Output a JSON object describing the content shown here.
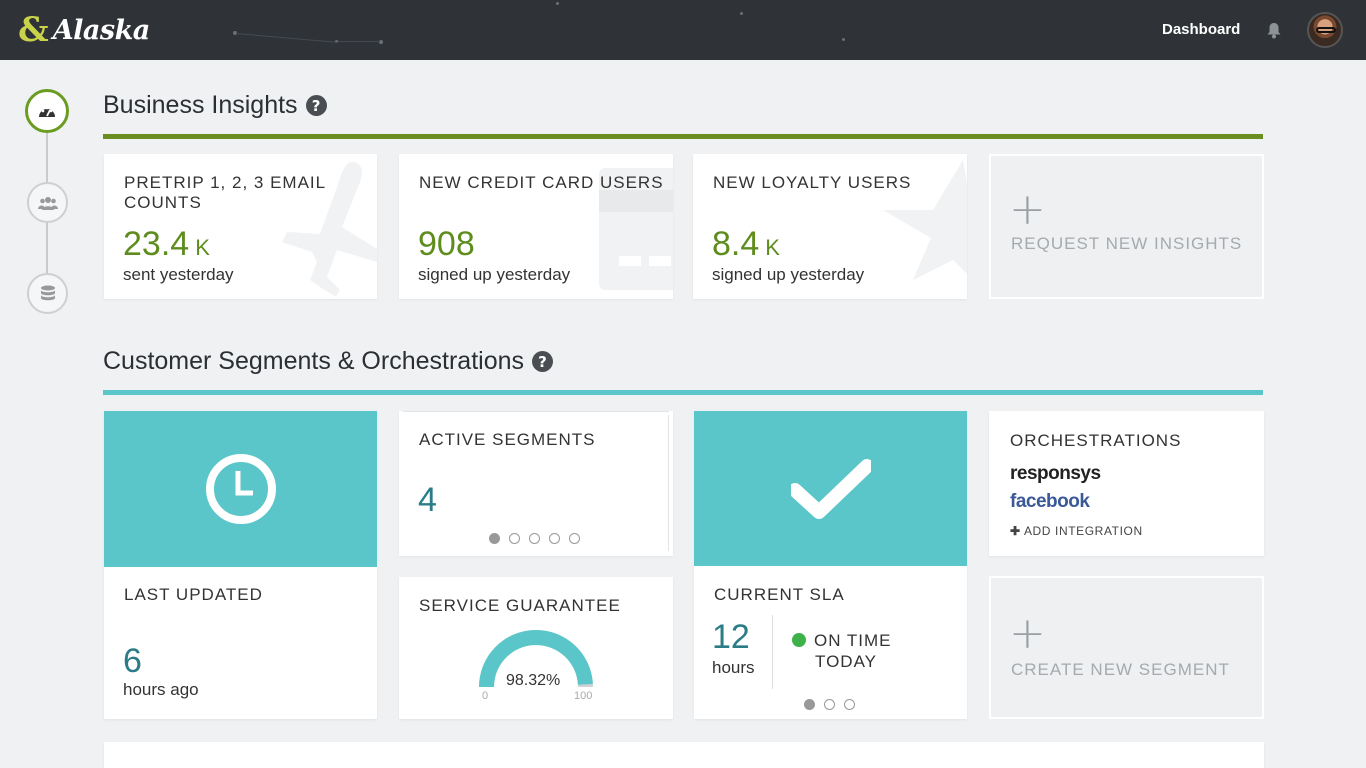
{
  "header": {
    "logo_text": "Alaska",
    "nav_label": "Dashboard"
  },
  "stepper": {
    "steps": [
      "dashboard-icon",
      "users-icon",
      "database-icon"
    ],
    "active_index": 0
  },
  "business_insights": {
    "title": "Business Insights",
    "rule_color": "#6b8e23",
    "cards": [
      {
        "title": "PRETRIP 1, 2, 3 EMAIL COUNTS",
        "value": "23.4",
        "unit": "K",
        "caption": "sent yesterday",
        "icon": "airplane-icon"
      },
      {
        "title": "NEW CREDIT CARD USERS",
        "value": "908",
        "unit": "",
        "caption": "signed up yesterday",
        "icon": "credit-card-icon"
      },
      {
        "title": "NEW LOYALTY USERS",
        "value": "8.4",
        "unit": "K",
        "caption": "signed up yesterday",
        "icon": "star-icon"
      }
    ],
    "request_label": "REQUEST NEW INSIGHTS"
  },
  "segments": {
    "title": "Customer Segments & Orchestrations",
    "rule_color": "#5bc6c9",
    "last_updated": {
      "title": "LAST UPDATED",
      "value": "6",
      "caption": "hours ago"
    },
    "active_segments": {
      "title": "ACTIVE SEGMENTS",
      "value": "4",
      "pages": 5,
      "current_page": 0
    },
    "service_guarantee": {
      "title": "SERVICE GUARANTEE",
      "value_label": "98.32%",
      "value": 98.32,
      "min_label": "0",
      "max_label": "100"
    },
    "current_sla": {
      "title": "CURRENT SLA",
      "value": "12",
      "caption": "hours",
      "status_line1": "ON TIME",
      "status_line2": "TODAY",
      "pages": 3,
      "current_page": 0
    },
    "orchestrations": {
      "title": "ORCHESTRATIONS",
      "brands": [
        "responsys",
        "facebook"
      ],
      "add_label": "ADD INTEGRATION"
    },
    "create_label": "CREATE NEW SEGMENT"
  }
}
